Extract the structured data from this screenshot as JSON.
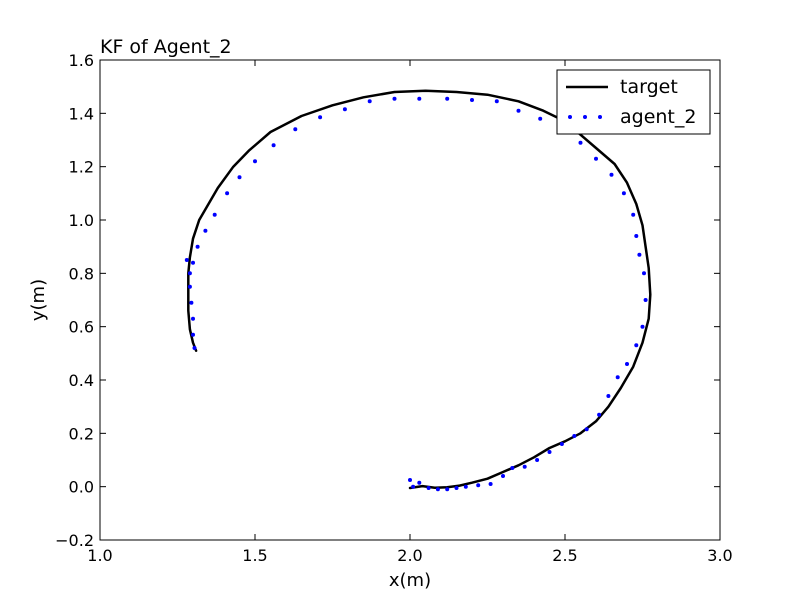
{
  "chart_data": {
    "type": "line",
    "title": "KF of Agent_2",
    "xlabel": "x(m)",
    "ylabel": "y(m)",
    "xlim": [
      1.0,
      3.0
    ],
    "ylim": [
      -0.2,
      1.6
    ],
    "xticks": [
      1.0,
      1.5,
      2.0,
      2.5,
      3.0
    ],
    "yticks": [
      -0.2,
      0.0,
      0.2,
      0.4,
      0.6,
      0.8,
      1.0,
      1.2,
      1.4,
      1.6
    ],
    "xtick_labels": [
      "1.0",
      "1.5",
      "2.0",
      "2.5",
      "3.0"
    ],
    "ytick_labels": [
      "−0.2",
      "0.0",
      "0.2",
      "0.4",
      "0.6",
      "0.8",
      "1.0",
      "1.2",
      "1.4",
      "1.6"
    ],
    "grid": false,
    "legend_position": "top-right",
    "series": [
      {
        "name": "target",
        "style": "line",
        "color": "#000000",
        "points": [
          [
            2.0,
            -0.005
          ],
          [
            2.04,
            0.002
          ],
          [
            2.08,
            -0.004
          ],
          [
            2.12,
            -0.002
          ],
          [
            2.16,
            0.004
          ],
          [
            2.2,
            0.015
          ],
          [
            2.25,
            0.03
          ],
          [
            2.3,
            0.055
          ],
          [
            2.35,
            0.08
          ],
          [
            2.4,
            0.11
          ],
          [
            2.45,
            0.145
          ],
          [
            2.5,
            0.17
          ],
          [
            2.55,
            0.2
          ],
          [
            2.6,
            0.245
          ],
          [
            2.64,
            0.3
          ],
          [
            2.68,
            0.37
          ],
          [
            2.72,
            0.45
          ],
          [
            2.75,
            0.54
          ],
          [
            2.77,
            0.63
          ],
          [
            2.775,
            0.72
          ],
          [
            2.77,
            0.82
          ],
          [
            2.76,
            0.9
          ],
          [
            2.75,
            0.98
          ],
          [
            2.73,
            1.06
          ],
          [
            2.7,
            1.14
          ],
          [
            2.66,
            1.21
          ],
          [
            2.6,
            1.27
          ],
          [
            2.55,
            1.32
          ],
          [
            2.5,
            1.37
          ],
          [
            2.43,
            1.41
          ],
          [
            2.35,
            1.445
          ],
          [
            2.25,
            1.47
          ],
          [
            2.15,
            1.48
          ],
          [
            2.05,
            1.485
          ],
          [
            1.95,
            1.48
          ],
          [
            1.85,
            1.46
          ],
          [
            1.75,
            1.43
          ],
          [
            1.65,
            1.39
          ],
          [
            1.55,
            1.33
          ],
          [
            1.48,
            1.26
          ],
          [
            1.43,
            1.2
          ],
          [
            1.38,
            1.12
          ],
          [
            1.35,
            1.06
          ],
          [
            1.32,
            1.0
          ],
          [
            1.3,
            0.93
          ],
          [
            1.29,
            0.86
          ],
          [
            1.285,
            0.8
          ],
          [
            1.285,
            0.73
          ],
          [
            1.285,
            0.66
          ],
          [
            1.29,
            0.59
          ],
          [
            1.3,
            0.54
          ],
          [
            1.31,
            0.51
          ]
        ]
      },
      {
        "name": "agent_2",
        "style": "dots",
        "color": "#0000ff",
        "points": [
          [
            2.0,
            0.025
          ],
          [
            2.01,
            0.0
          ],
          [
            2.03,
            0.015
          ],
          [
            2.06,
            -0.005
          ],
          [
            2.09,
            -0.01
          ],
          [
            2.12,
            -0.01
          ],
          [
            2.15,
            -0.005
          ],
          [
            2.18,
            0.0
          ],
          [
            2.22,
            0.005
          ],
          [
            2.26,
            0.01
          ],
          [
            2.3,
            0.04
          ],
          [
            2.33,
            0.07
          ],
          [
            2.37,
            0.075
          ],
          [
            2.41,
            0.1
          ],
          [
            2.45,
            0.13
          ],
          [
            2.49,
            0.16
          ],
          [
            2.53,
            0.19
          ],
          [
            2.57,
            0.215
          ],
          [
            2.61,
            0.27
          ],
          [
            2.64,
            0.34
          ],
          [
            2.67,
            0.41
          ],
          [
            2.7,
            0.46
          ],
          [
            2.73,
            0.53
          ],
          [
            2.75,
            0.6
          ],
          [
            2.76,
            0.7
          ],
          [
            2.755,
            0.8
          ],
          [
            2.74,
            0.87
          ],
          [
            2.73,
            0.94
          ],
          [
            2.72,
            1.02
          ],
          [
            2.69,
            1.1
          ],
          [
            2.65,
            1.17
          ],
          [
            2.6,
            1.23
          ],
          [
            2.55,
            1.29
          ],
          [
            2.49,
            1.34
          ],
          [
            2.42,
            1.38
          ],
          [
            2.35,
            1.41
          ],
          [
            2.28,
            1.445
          ],
          [
            2.2,
            1.45
          ],
          [
            2.12,
            1.455
          ],
          [
            2.03,
            1.455
          ],
          [
            1.95,
            1.455
          ],
          [
            1.87,
            1.445
          ],
          [
            1.79,
            1.415
          ],
          [
            1.71,
            1.385
          ],
          [
            1.63,
            1.34
          ],
          [
            1.56,
            1.28
          ],
          [
            1.5,
            1.22
          ],
          [
            1.45,
            1.16
          ],
          [
            1.41,
            1.1
          ],
          [
            1.37,
            1.02
          ],
          [
            1.34,
            0.96
          ],
          [
            1.315,
            0.9
          ],
          [
            1.3,
            0.84
          ],
          [
            1.29,
            0.8
          ],
          [
            1.28,
            0.85
          ],
          [
            1.29,
            0.75
          ],
          [
            1.295,
            0.69
          ],
          [
            1.3,
            0.63
          ],
          [
            1.3,
            0.57
          ],
          [
            1.305,
            0.52
          ]
        ]
      }
    ]
  }
}
